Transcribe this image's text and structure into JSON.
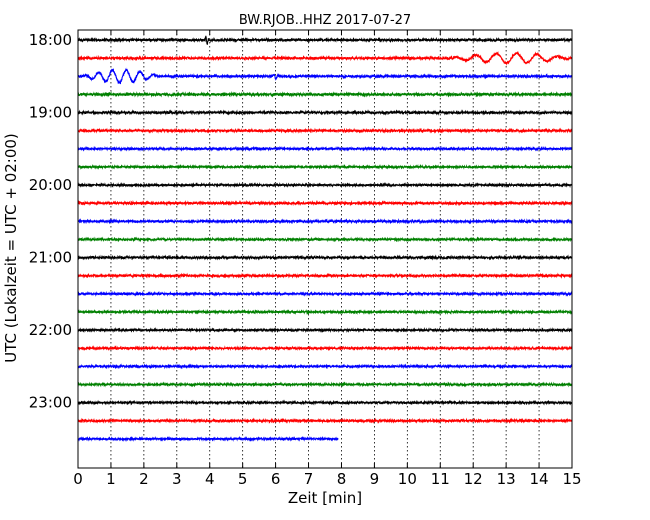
{
  "chart_data": {
    "type": "line",
    "subtype": "seismogram-dayplot",
    "title": "BW.RJOB..HHZ 2017-07-27",
    "xlabel": "Zeit  [min]",
    "ylabel": "UTC (Lokalzeit = UTC + 02:00)",
    "xlim": [
      0,
      15
    ],
    "x_ticks": [
      "0",
      "1",
      "2",
      "3",
      "4",
      "5",
      "6",
      "7",
      "8",
      "9",
      "10",
      "11",
      "12",
      "13",
      "14",
      "15"
    ],
    "y_ticks": [
      "18:00",
      "19:00",
      "20:00",
      "21:00",
      "22:00",
      "23:00"
    ],
    "x_grid": "dotted vertical lines at each minute",
    "color_cycle": [
      "#000000",
      "#ff0000",
      "#0000ff",
      "#008000"
    ],
    "traces": [
      {
        "start": "18:00",
        "end_min": 15,
        "amplitude": 0.12,
        "events": [
          {
            "at_min": 3.85,
            "amp": 0.55,
            "width": 0.12,
            "period": 0.1
          }
        ]
      },
      {
        "start": "18:15",
        "end_min": 15,
        "amplitude": 0.12,
        "events": [
          {
            "at_min": 11.3,
            "amp": 0.55,
            "width": 3.7,
            "period": 0.62
          }
        ]
      },
      {
        "start": "18:30",
        "end_min": 15,
        "amplitude": 0.12,
        "events": [
          {
            "at_min": 0.1,
            "amp": 0.7,
            "width": 2.4,
            "period": 0.42
          },
          {
            "at_min": 5.9,
            "amp": 0.35,
            "width": 0.2,
            "period": 0.15
          }
        ]
      },
      {
        "start": "18:45",
        "end_min": 15,
        "amplitude": 0.14,
        "events": []
      },
      {
        "start": "19:00",
        "end_min": 15,
        "amplitude": 0.12,
        "events": []
      },
      {
        "start": "19:15",
        "end_min": 15,
        "amplitude": 0.12,
        "events": []
      },
      {
        "start": "19:30",
        "end_min": 15,
        "amplitude": 0.1,
        "events": []
      },
      {
        "start": "19:45",
        "end_min": 15,
        "amplitude": 0.1,
        "events": []
      },
      {
        "start": "20:00",
        "end_min": 15,
        "amplitude": 0.1,
        "events": []
      },
      {
        "start": "20:15",
        "end_min": 15,
        "amplitude": 0.12,
        "events": []
      },
      {
        "start": "20:30",
        "end_min": 15,
        "amplitude": 0.12,
        "events": []
      },
      {
        "start": "20:45",
        "end_min": 15,
        "amplitude": 0.1,
        "events": []
      },
      {
        "start": "21:00",
        "end_min": 15,
        "amplitude": 0.12,
        "events": []
      },
      {
        "start": "21:15",
        "end_min": 15,
        "amplitude": 0.12,
        "events": []
      },
      {
        "start": "21:30",
        "end_min": 15,
        "amplitude": 0.1,
        "events": []
      },
      {
        "start": "21:45",
        "end_min": 15,
        "amplitude": 0.1,
        "events": []
      },
      {
        "start": "22:00",
        "end_min": 15,
        "amplitude": 0.1,
        "events": []
      },
      {
        "start": "22:15",
        "end_min": 15,
        "amplitude": 0.1,
        "events": []
      },
      {
        "start": "22:30",
        "end_min": 15,
        "amplitude": 0.1,
        "events": []
      },
      {
        "start": "22:45",
        "end_min": 15,
        "amplitude": 0.1,
        "events": []
      },
      {
        "start": "23:00",
        "end_min": 15,
        "amplitude": 0.1,
        "events": []
      },
      {
        "start": "23:15",
        "end_min": 15,
        "amplitude": 0.12,
        "events": []
      },
      {
        "start": "23:30",
        "end_min": 7.9,
        "amplitude": 0.1,
        "events": []
      }
    ]
  }
}
